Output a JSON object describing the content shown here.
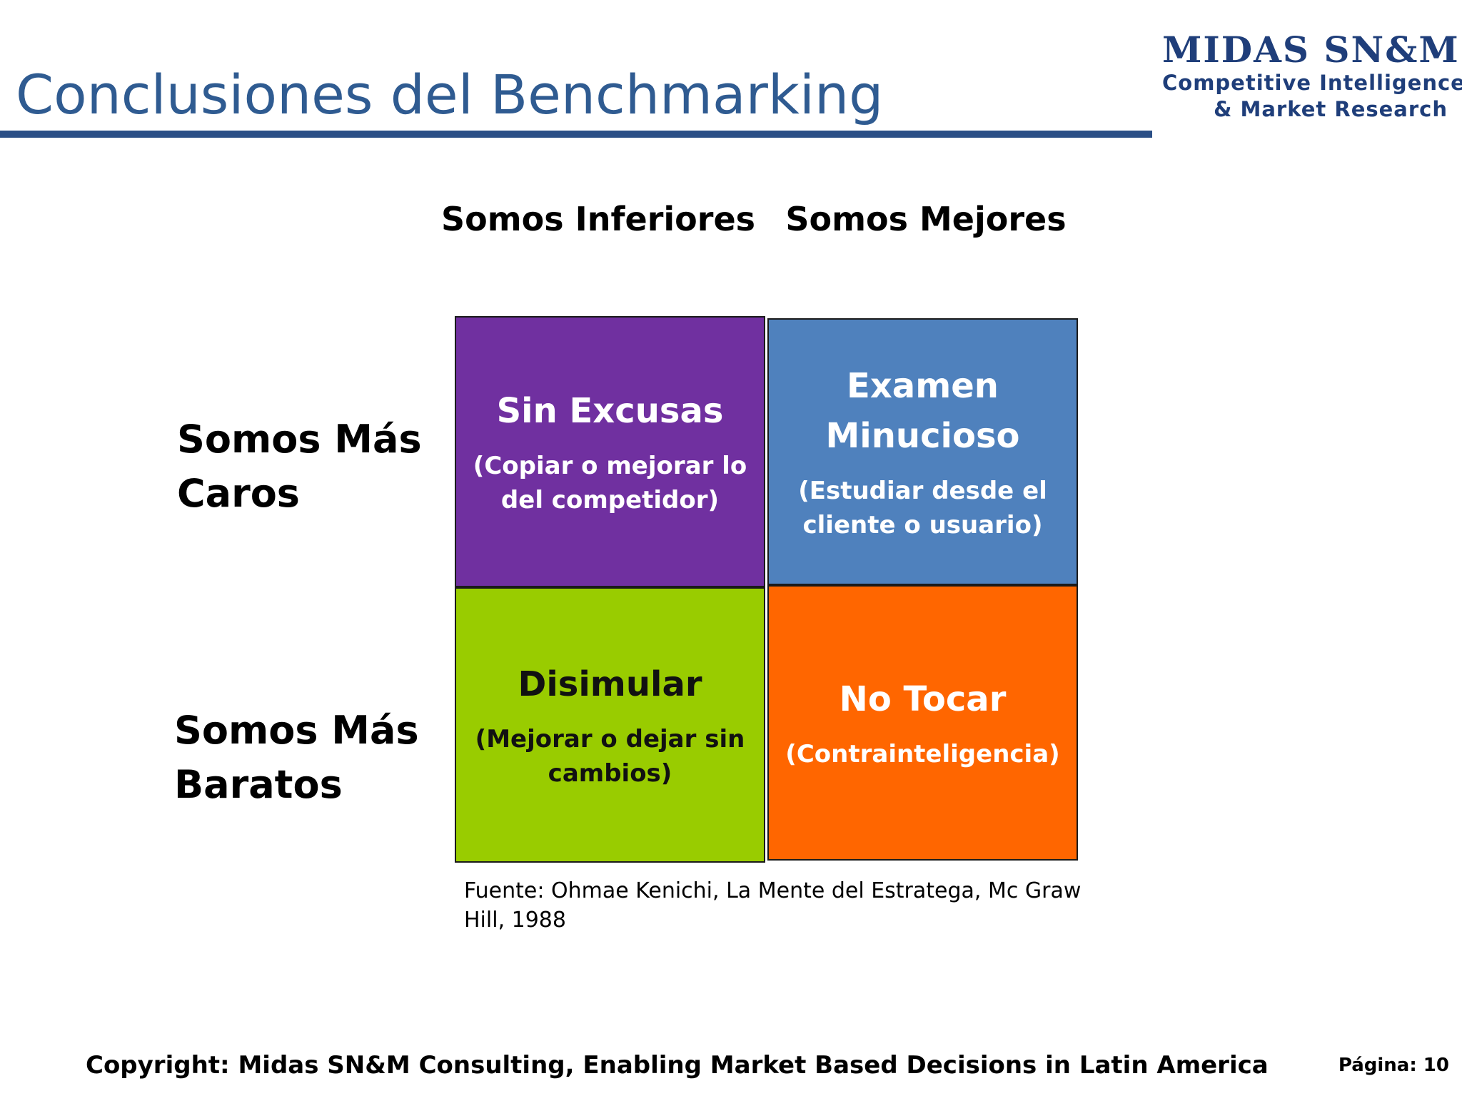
{
  "slide": {
    "title": "Conclusiones del Benchmarking",
    "logo": {
      "name": "MIDAS SN&M",
      "line1": "Competitive Intelligence",
      "line2": "& Market Research"
    }
  },
  "matrix": {
    "column_headers": [
      "Somos Inferiores",
      "Somos Mejores"
    ],
    "row_headers": [
      {
        "line1": "Somos Más",
        "line2": "Caros"
      },
      {
        "line1": "Somos Más",
        "line2": "Baratos"
      }
    ],
    "quadrants": {
      "top_left": {
        "title": "Sin Excusas",
        "subtitle": "(Copiar o mejorar lo del competidor)",
        "color": "#7030a0"
      },
      "top_right": {
        "title": "Examen Minucioso",
        "subtitle": "(Estudiar desde el cliente o usuario)",
        "color": "#4f81bd"
      },
      "bottom_left": {
        "title": "Disimular",
        "subtitle": "(Mejorar o dejar sin cambios)",
        "color": "#99cc00"
      },
      "bottom_right": {
        "title": "No Tocar",
        "subtitle": "(Contrainteligencia)",
        "color": "#ff6600"
      }
    },
    "source": "Fuente: Ohmae Kenichi, La Mente del Estratega, Mc Graw Hill, 1988"
  },
  "footer": {
    "copyright": "Copyright: Midas SN&M Consulting, Enabling Market Based Decisions in Latin America",
    "page": "Página: 10"
  }
}
